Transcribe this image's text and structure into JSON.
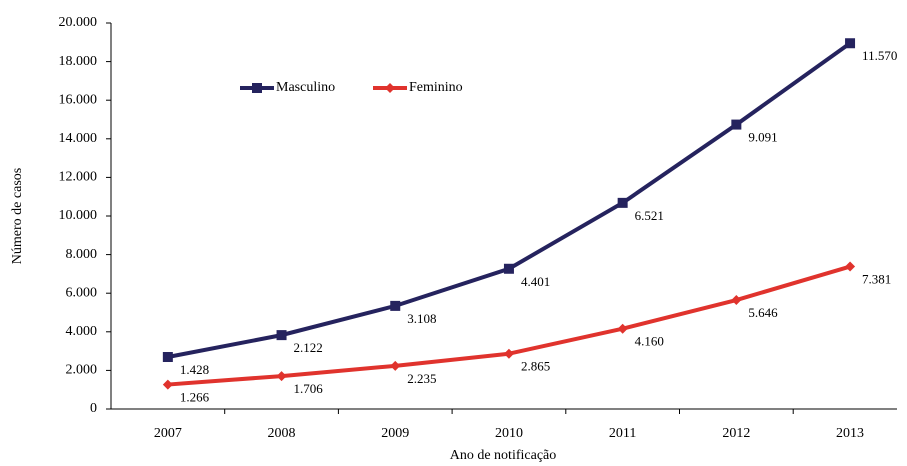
{
  "chart_data": {
    "type": "line",
    "stacked": true,
    "x_label": "Ano de notificação",
    "y_label": "Número de casos",
    "categories": [
      "2007",
      "2008",
      "2009",
      "2010",
      "2011",
      "2012",
      "2013"
    ],
    "series": [
      {
        "name": "Masculino",
        "color": "#25235e",
        "marker": "square",
        "values": [
          1428,
          2122,
          3108,
          4401,
          6521,
          9091,
          11570
        ],
        "value_labels": [
          "1.428",
          "2.122",
          "3.108",
          "4.401",
          "6.521",
          "9.091",
          "11.570"
        ]
      },
      {
        "name": "Feminino",
        "color": "#e0332d",
        "marker": "diamond",
        "values": [
          1266,
          1706,
          2235,
          2865,
          4160,
          5646,
          7381
        ],
        "value_labels": [
          "1.266",
          "1.706",
          "2.235",
          "2.865",
          "4.160",
          "5.646",
          "7.381"
        ]
      }
    ],
    "ylim": [
      0,
      20000
    ],
    "yticks": [
      0,
      {
        "value": 2000,
        "label": "2.000"
      },
      {
        "value": 4000,
        "label": "4.000"
      },
      {
        "value": 6000,
        "label": "6.000"
      },
      {
        "value": 8000,
        "label": "8.000"
      },
      {
        "value": 10000,
        "label": "10.000"
      },
      {
        "value": 12000,
        "label": "12.000"
      },
      {
        "value": 14000,
        "label": "14.000"
      },
      {
        "value": 16000,
        "label": "16.000"
      },
      {
        "value": 18000,
        "label": "18.000"
      },
      {
        "value": 20000,
        "label": "20.000"
      }
    ],
    "grid": false
  }
}
